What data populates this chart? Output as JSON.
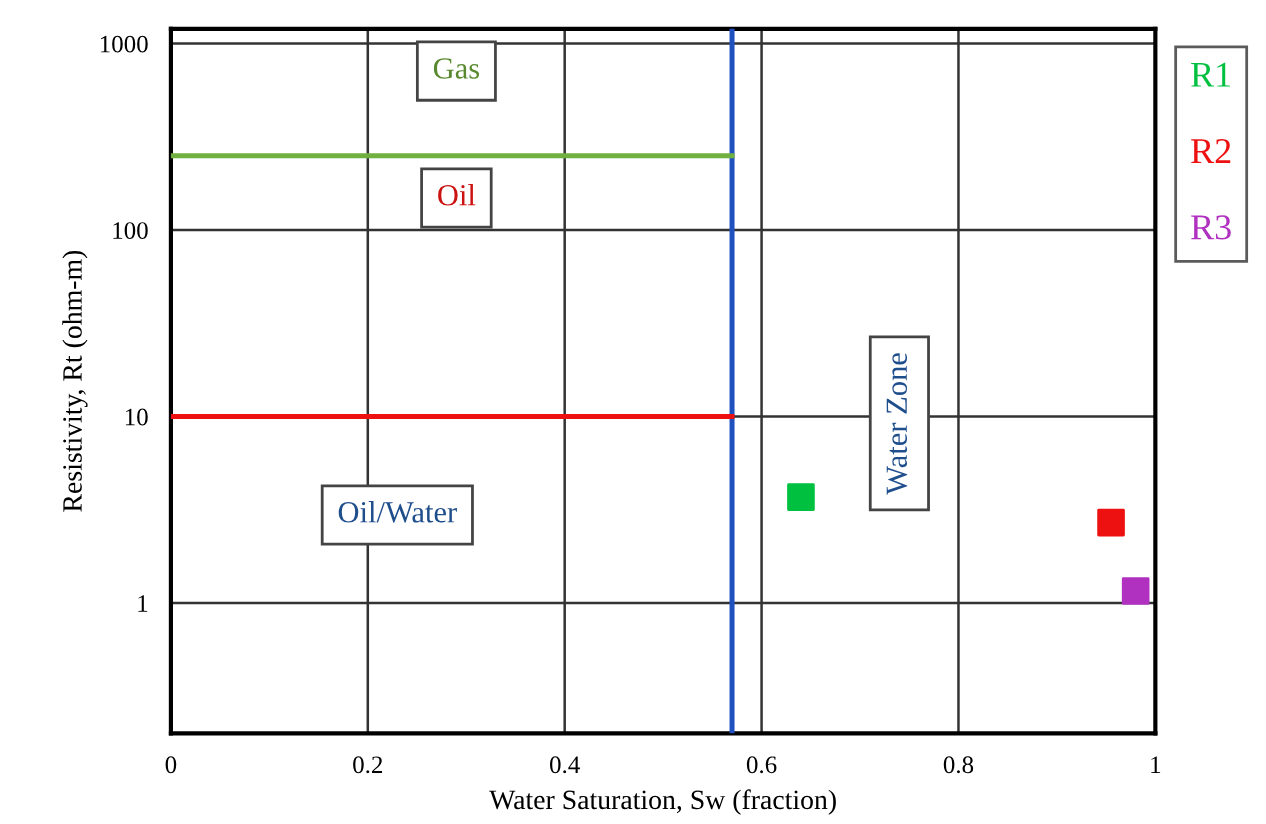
{
  "chart_data": {
    "type": "scatter",
    "xlabel": "Water Saturation, Sw (fraction)",
    "ylabel": "Resistivity, Rt (ohm-m)",
    "log": "y",
    "xlim": [
      0,
      1
    ],
    "ylim": [
      0.2,
      1200
    ],
    "xticks": [
      0,
      0.2,
      0.4,
      0.6,
      0.8,
      1
    ],
    "yticks": [
      1,
      10,
      100,
      1000
    ],
    "grid": true,
    "legend": "top right",
    "marker": "square",
    "series": [
      {
        "name": "R1",
        "color": "#00c040",
        "x": [
          0.64
        ],
        "values": [
          3.7
        ]
      },
      {
        "name": "R2",
        "color": "#ee1111",
        "x": [
          0.955
        ],
        "values": [
          2.7
        ]
      },
      {
        "name": "R3",
        "color": "#b030c0",
        "x": [
          0.98
        ],
        "values": [
          1.16
        ]
      },
      {
        "type": "line",
        "marker": "none",
        "color": "#70b040",
        "x": [
          0,
          0.57
        ],
        "values": [
          250,
          250
        ]
      },
      {
        "type": "line",
        "marker": "none",
        "color": "#ee1111",
        "x": [
          0,
          0.57
        ],
        "values": [
          10,
          10
        ]
      }
    ],
    "ref_lines": [
      {
        "axis": "x",
        "value": 0.57,
        "color": "#2050c0"
      }
    ],
    "annotations": [
      "Gas",
      "Oil",
      "Oil/Water",
      "Water Zone"
    ]
  }
}
